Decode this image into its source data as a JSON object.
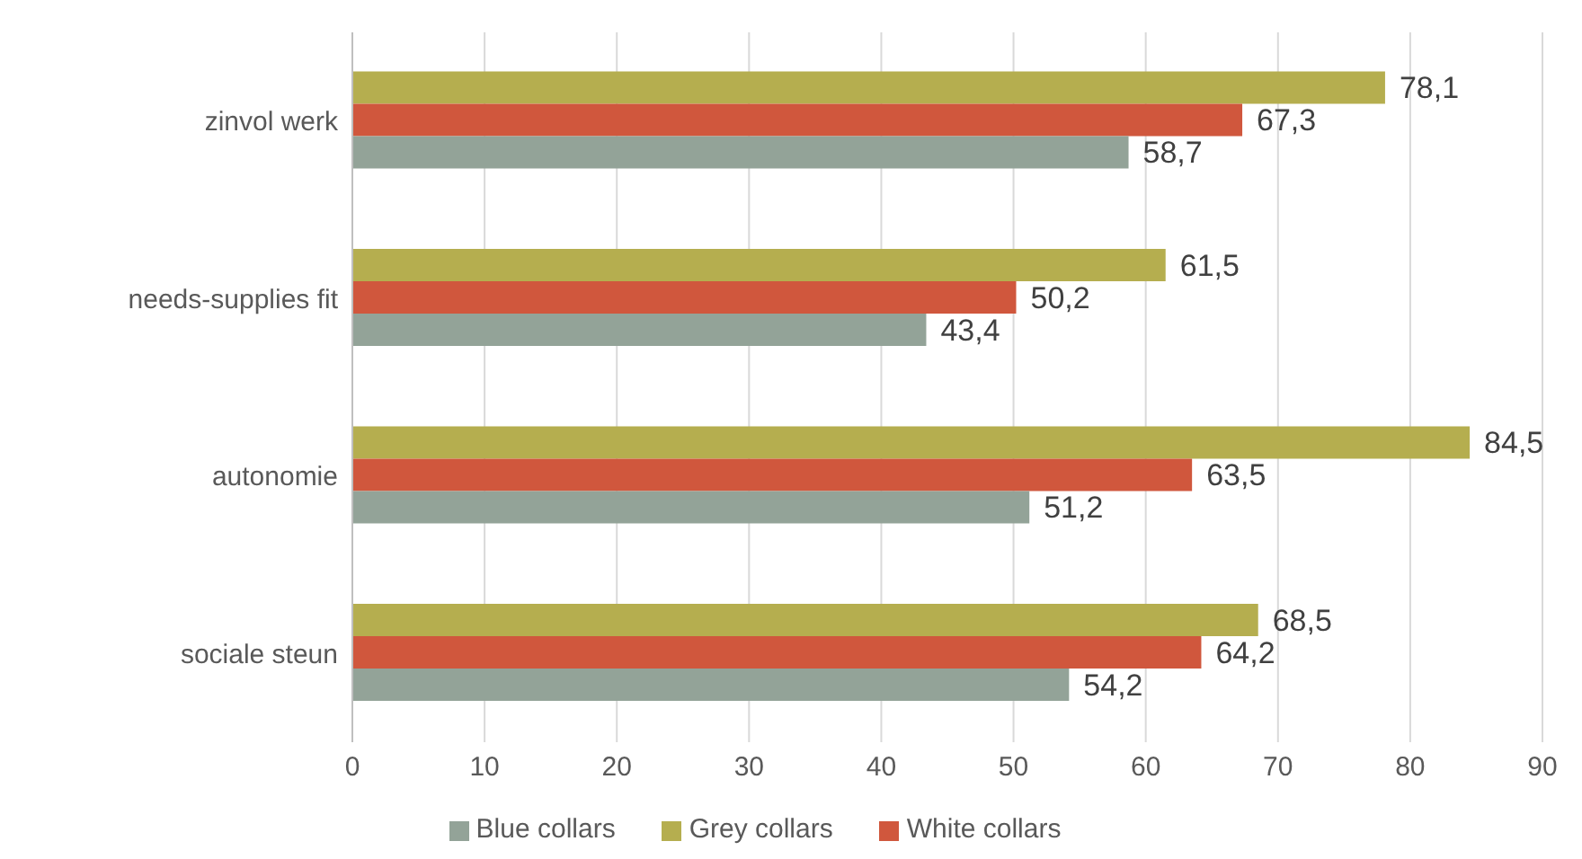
{
  "chart_data": {
    "type": "bar",
    "orientation": "horizontal",
    "categories": [
      "zinvol werk",
      "needs-supplies fit",
      "autonomie",
      "sociale steun"
    ],
    "series": [
      {
        "name": "Grey collars",
        "color": "#b5ae4f",
        "values": [
          78.1,
          61.5,
          84.5,
          68.5
        ],
        "value_labels": [
          "78,1",
          "61,5",
          "84,5",
          "68,5"
        ]
      },
      {
        "name": "White collars",
        "color": "#d0573d",
        "values": [
          67.3,
          50.2,
          63.5,
          64.2
        ],
        "value_labels": [
          "67,3",
          "50,2",
          "63,5",
          "64,2"
        ]
      },
      {
        "name": "Blue collars",
        "color": "#93a398",
        "values": [
          58.7,
          43.4,
          51.2,
          54.2
        ],
        "value_labels": [
          "58,7",
          "43,4",
          "51,2",
          "54,2"
        ]
      }
    ],
    "xlim": [
      0,
      90
    ],
    "xticks": [
      0,
      10,
      20,
      30,
      40,
      50,
      60,
      70,
      80,
      90
    ],
    "grid": "x",
    "legend": "bottom"
  }
}
